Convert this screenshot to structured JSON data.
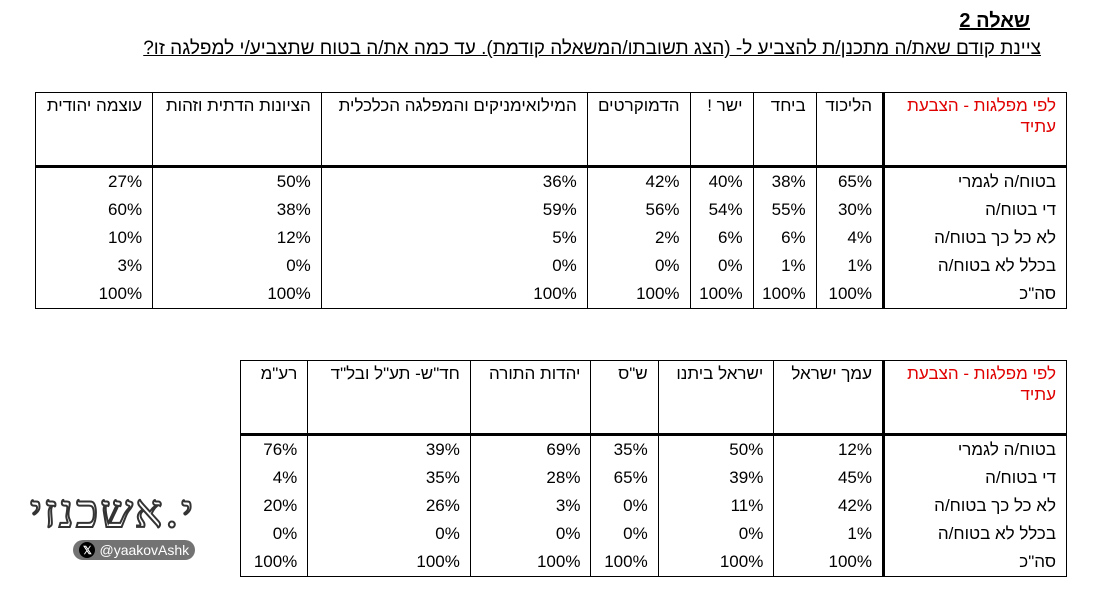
{
  "header": {
    "title": "שאלה 2",
    "question": "ציינת קודם שאת/ה מתכנן/ת להצביע ל- (הצג תשובתו/המשאלה קודמת). עד כמה את/ה בטוח שתצביע/י למפלגה זו?"
  },
  "tables": [
    {
      "corner": "לפי מפלגות - הצבעת עתיד",
      "columns": [
        "הליכוד",
        "ביחד",
        "ישר !",
        "הדמוקרטים",
        "המילואימניקים והמפלגה הכלכלית",
        "הציונות הדתית וזהות",
        "עוצמה יהודית"
      ],
      "rows": [
        {
          "label": "בטוח/ה לגמרי",
          "cells": [
            "65%",
            "38%",
            "40%",
            "42%",
            "36%",
            "50%",
            "27%"
          ]
        },
        {
          "label": "די בטוח/ה",
          "cells": [
            "30%",
            "55%",
            "54%",
            "56%",
            "59%",
            "38%",
            "60%"
          ]
        },
        {
          "label": "לא כל כך בטוח/ה",
          "cells": [
            "4%",
            "6%",
            "6%",
            "2%",
            "5%",
            "12%",
            "10%"
          ]
        },
        {
          "label": "בכלל לא בטוח/ה",
          "cells": [
            "1%",
            "1%",
            "0%",
            "0%",
            "0%",
            "0%",
            "3%"
          ]
        },
        {
          "label": "סה\"כ",
          "cells": [
            "100%",
            "100%",
            "100%",
            "100%",
            "100%",
            "100%",
            "100%"
          ]
        }
      ]
    },
    {
      "corner": "לפי מפלגות - הצבעת עתיד",
      "columns": [
        "עמך ישראל",
        "ישראל ביתנו",
        "ש\"ס",
        "יהדות התורה",
        "חד\"ש- תע\"ל ובל\"ד",
        "רע\"מ"
      ],
      "rows": [
        {
          "label": "בטוח/ה לגמרי",
          "cells": [
            "12%",
            "50%",
            "35%",
            "69%",
            "39%",
            "76%"
          ]
        },
        {
          "label": "די בטוח/ה",
          "cells": [
            "45%",
            "39%",
            "65%",
            "28%",
            "35%",
            "4%"
          ]
        },
        {
          "label": "לא כל כך בטוח/ה",
          "cells": [
            "42%",
            "11%",
            "0%",
            "3%",
            "26%",
            "20%"
          ]
        },
        {
          "label": "בכלל לא בטוח/ה",
          "cells": [
            "1%",
            "0%",
            "0%",
            "0%",
            "0%",
            "0%"
          ]
        },
        {
          "label": "סה\"כ",
          "cells": [
            "100%",
            "100%",
            "100%",
            "100%",
            "100%",
            "100%"
          ]
        }
      ]
    }
  ],
  "watermark": {
    "name": "י.אשכנזי",
    "handle": "@yaakovAshk"
  }
}
